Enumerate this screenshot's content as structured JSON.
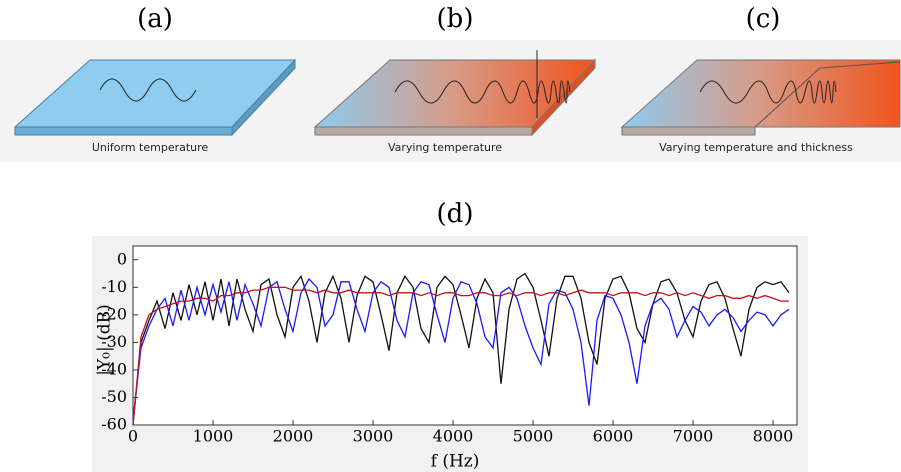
{
  "panels": [
    {
      "label": "(a)",
      "caption": "Uniform temperature"
    },
    {
      "label": "(b)",
      "caption": "Varying temperature"
    },
    {
      "label": "(c)",
      "caption": "Varying temperature and thickness"
    }
  ],
  "chart_data": {
    "type": "line",
    "title": "(d)",
    "xlabel": "f (Hz)",
    "ylabel": "|Y₀| (dB)",
    "xlim": [
      0,
      8300
    ],
    "ylim": [
      -60,
      5
    ],
    "xticks": [
      0,
      1000,
      2000,
      3000,
      4000,
      5000,
      6000,
      7000,
      8000
    ],
    "yticks": [
      0,
      -10,
      -20,
      -30,
      -40,
      -50,
      -60
    ],
    "x": [
      0,
      100,
      200,
      300,
      400,
      500,
      600,
      700,
      800,
      900,
      1000,
      1100,
      1200,
      1300,
      1400,
      1500,
      1600,
      1700,
      1800,
      1900,
      2000,
      2100,
      2200,
      2300,
      2400,
      2500,
      2600,
      2700,
      2800,
      2900,
      3000,
      3100,
      3200,
      3300,
      3400,
      3500,
      3600,
      3700,
      3800,
      3900,
      4000,
      4100,
      4200,
      4300,
      4400,
      4500,
      4600,
      4700,
      4800,
      4900,
      5000,
      5100,
      5200,
      5300,
      5400,
      5500,
      5600,
      5700,
      5800,
      5900,
      6000,
      6100,
      6200,
      6300,
      6400,
      6500,
      6600,
      6700,
      6800,
      6900,
      7000,
      7100,
      7200,
      7300,
      7400,
      7500,
      7600,
      7700,
      7800,
      7900,
      8000,
      8100,
      8200
    ],
    "series": [
      {
        "color": "#111111",
        "values": [
          -60,
          -30,
          -22,
          -15,
          -25,
          -12,
          -22,
          -9,
          -20,
          -8,
          -22,
          -7,
          -24,
          -7,
          -18,
          -26,
          -9,
          -7,
          -20,
          -28,
          -10,
          -6,
          -15,
          -30,
          -12,
          -6,
          -14,
          -30,
          -13,
          -6,
          -8,
          -20,
          -33,
          -12,
          -6,
          -10,
          -25,
          -30,
          -10,
          -6,
          -9,
          -20,
          -32,
          -14,
          -7,
          -12,
          -45,
          -18,
          -7,
          -5,
          -10,
          -22,
          -35,
          -14,
          -6,
          -6,
          -14,
          -30,
          -38,
          -14,
          -7,
          -6,
          -12,
          -25,
          -30,
          -16,
          -8,
          -7,
          -12,
          -22,
          -28,
          -15,
          -9,
          -8,
          -14,
          -25,
          -35,
          -18,
          -10,
          -8,
          -9,
          -8,
          -12
        ]
      },
      {
        "color": "#1a1aff",
        "values": [
          -58,
          -32,
          -24,
          -18,
          -14,
          -24,
          -11,
          -22,
          -10,
          -20,
          -9,
          -19,
          -8,
          -22,
          -9,
          -16,
          -24,
          -10,
          -8,
          -18,
          -26,
          -12,
          -7,
          -10,
          -24,
          -20,
          -8,
          -8,
          -18,
          -26,
          -12,
          -8,
          -10,
          -22,
          -28,
          -12,
          -8,
          -9,
          -20,
          -30,
          -14,
          -8,
          -9,
          -16,
          -28,
          -32,
          -12,
          -10,
          -14,
          -24,
          -32,
          -38,
          -16,
          -11,
          -12,
          -18,
          -30,
          -53,
          -22,
          -13,
          -14,
          -20,
          -30,
          -45,
          -24,
          -16,
          -14,
          -18,
          -28,
          -22,
          -17,
          -19,
          -24,
          -20,
          -18,
          -21,
          -26,
          -22,
          -19,
          -20,
          -24,
          -20,
          -18
        ]
      },
      {
        "color": "#c0141c",
        "values": [
          -60,
          -28,
          -20,
          -18,
          -17,
          -16,
          -15,
          -15,
          -14,
          -14,
          -15,
          -13,
          -13,
          -12,
          -12,
          -11,
          -11,
          -10,
          -10,
          -10,
          -11,
          -11,
          -11,
          -12,
          -11,
          -12,
          -12,
          -11,
          -12,
          -12,
          -12,
          -12,
          -13,
          -12,
          -12,
          -12,
          -13,
          -12,
          -13,
          -12,
          -12,
          -13,
          -13,
          -12,
          -12,
          -13,
          -13,
          -12,
          -13,
          -12,
          -12,
          -13,
          -12,
          -12,
          -13,
          -12,
          -11,
          -12,
          -12,
          -12,
          -13,
          -12,
          -12,
          -12,
          -13,
          -12,
          -12,
          -13,
          -12,
          -13,
          -12,
          -13,
          -14,
          -13,
          -13,
          -14,
          -14,
          -13,
          -14,
          -13,
          -14,
          -15,
          -15
        ]
      }
    ]
  }
}
